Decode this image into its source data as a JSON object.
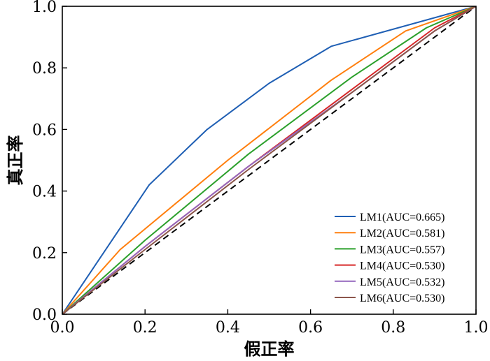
{
  "chart_data": {
    "type": "line",
    "xlabel": "假正率",
    "ylabel": "真正率",
    "xlim": [
      0,
      1
    ],
    "ylim": [
      0,
      1
    ],
    "x_ticks": [
      "0.0",
      "0.2",
      "0.4",
      "0.6",
      "0.8",
      "1.0"
    ],
    "y_ticks": [
      "0.0",
      "0.2",
      "0.4",
      "0.6",
      "0.8",
      "1.0"
    ],
    "grid": false,
    "legend_position": "bottom-right",
    "reference_line": {
      "style": "dashed",
      "color": "#000000",
      "points": [
        [
          0,
          0
        ],
        [
          1,
          1
        ]
      ]
    },
    "series": [
      {
        "name": "LM1(AUC=0.665)",
        "color": "#1f5fb4",
        "points": [
          [
            0,
            0
          ],
          [
            0.21,
            0.42
          ],
          [
            0.35,
            0.6
          ],
          [
            0.5,
            0.75
          ],
          [
            0.65,
            0.87
          ],
          [
            1.0,
            1.0
          ]
        ]
      },
      {
        "name": "LM2(AUC=0.581)",
        "color": "#ff7f0e",
        "points": [
          [
            0,
            0
          ],
          [
            0.14,
            0.21
          ],
          [
            0.4,
            0.5
          ],
          [
            0.65,
            0.76
          ],
          [
            0.83,
            0.92
          ],
          [
            1.0,
            1.0
          ]
        ]
      },
      {
        "name": "LM3(AUC=0.557)",
        "color": "#2ca02c",
        "points": [
          [
            0,
            0
          ],
          [
            0.2,
            0.24
          ],
          [
            0.45,
            0.52
          ],
          [
            0.7,
            0.77
          ],
          [
            0.88,
            0.93
          ],
          [
            1.0,
            1.0
          ]
        ]
      },
      {
        "name": "LM4(AUC=0.530)",
        "color": "#d62728",
        "points": [
          [
            0,
            0
          ],
          [
            0.2,
            0.22
          ],
          [
            0.45,
            0.48
          ],
          [
            0.7,
            0.73
          ],
          [
            0.9,
            0.93
          ],
          [
            1.0,
            1.0
          ]
        ]
      },
      {
        "name": "LM5(AUC=0.532)",
        "color": "#9467bd",
        "points": [
          [
            0,
            0
          ],
          [
            0.2,
            0.22
          ],
          [
            0.45,
            0.48
          ],
          [
            0.7,
            0.72
          ],
          [
            0.9,
            0.92
          ],
          [
            1.0,
            1.0
          ]
        ]
      },
      {
        "name": "LM6(AUC=0.530)",
        "color": "#8c564b",
        "points": [
          [
            0,
            0
          ],
          [
            0.2,
            0.21
          ],
          [
            0.45,
            0.47
          ],
          [
            0.7,
            0.72
          ],
          [
            0.9,
            0.92
          ],
          [
            1.0,
            1.0
          ]
        ]
      }
    ]
  }
}
